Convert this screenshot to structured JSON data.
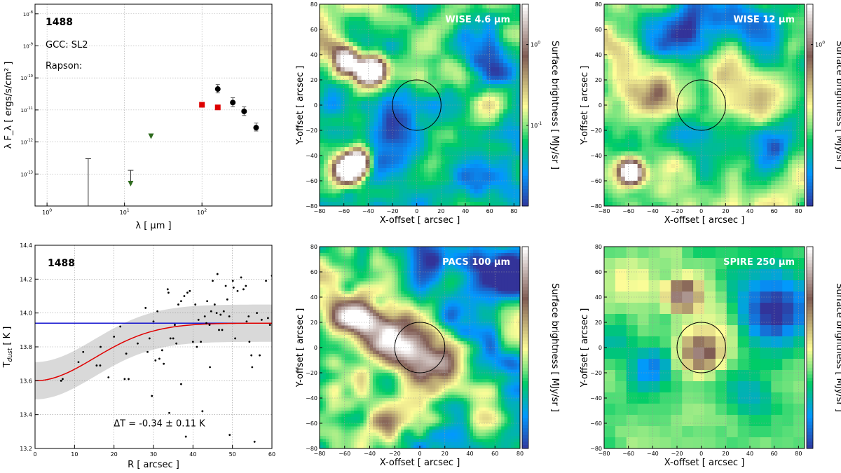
{
  "chart_data": [
    {
      "type": "scatter",
      "id": "sed",
      "source_id": "1488",
      "annotations": [
        "GCC: SL2",
        "Rapson:"
      ],
      "xlabel": "λ [ μm ]",
      "ylabel": "λ F_λ [ ergs/s/cm² ]",
      "x_scale": "log",
      "y_scale": "log",
      "xlim": [
        0.7,
        800
      ],
      "ylim": [
        1e-14,
        2e-08
      ],
      "x_ticks": [
        "10^0",
        "10^1",
        "10^2"
      ],
      "y_ticks": [
        "10^-13",
        "10^-12",
        "10^-11",
        "10^-10",
        "10^-9",
        "10^-8"
      ],
      "series": [
        {
          "name": "black circles",
          "color": "#000000",
          "marker": "circle",
          "points": [
            [
              160,
              4.5e-11
            ],
            [
              250,
              1.7e-11
            ],
            [
              350,
              9e-12
            ],
            [
              500,
              2.8e-12
            ]
          ],
          "yerr_upper": [
            6.2e-11,
            2.4e-11,
            1.25e-11,
            3.9e-12
          ],
          "yerr_lower": [
            3.4e-11,
            1.25e-11,
            6.7e-12,
            2.2e-12
          ]
        },
        {
          "name": "red squares",
          "color": "#dd0000",
          "marker": "square",
          "points": [
            [
              100,
              1.45e-11
            ],
            [
              160,
              1.2e-11
            ]
          ]
        },
        {
          "name": "green triangles (upper limits)",
          "color": "#2e6b1e",
          "marker": "triangle-down",
          "points": [
            [
              12,
              5e-14
            ],
            [
              22,
              1.5e-12
            ]
          ]
        },
        {
          "name": "bars",
          "color": "#333333",
          "marker": "errorbar",
          "bars": [
            [
              3.4,
              1e-14,
              3e-13
            ],
            [
              12,
              6e-14,
              1.3e-13
            ]
          ]
        }
      ]
    },
    {
      "type": "scatter",
      "id": "profile",
      "source_id": "1488",
      "xlabel": "R [ arcsec ]",
      "ylabel": "T_dust [ K ]",
      "xlim": [
        0,
        60
      ],
      "ylim": [
        13.2,
        14.4
      ],
      "x_ticks": [
        "0",
        "10",
        "20",
        "30",
        "40",
        "50",
        "60"
      ],
      "y_ticks": [
        "13.2",
        "13.4",
        "13.6",
        "13.8",
        "14.0",
        "14.2",
        "14.4"
      ],
      "annotation": "ΔT = -0.34 ± 0.11 K",
      "blue_line_T": 13.94,
      "fit": {
        "T_center": 13.6,
        "T_outer": 13.94,
        "sigma_arcsec": 15,
        "band_halfwidth_K": 0.11
      },
      "points": [
        [
          6.6,
          13.6
        ],
        [
          7,
          13.61
        ],
        [
          11,
          13.71
        ],
        [
          12.2,
          13.77
        ],
        [
          15.6,
          13.69
        ],
        [
          16.5,
          13.69
        ],
        [
          16.6,
          13.8
        ],
        [
          18.6,
          13.62
        ],
        [
          20,
          13.86
        ],
        [
          21.6,
          13.92
        ],
        [
          22.7,
          13.61
        ],
        [
          23.1,
          13.76
        ],
        [
          23.7,
          13.61
        ],
        [
          26,
          13.82
        ],
        [
          28,
          14.03
        ],
        [
          28.5,
          13.77
        ],
        [
          29,
          13.85
        ],
        [
          30,
          13.95
        ],
        [
          31,
          14.01
        ],
        [
          31.5,
          13.73
        ],
        [
          32.2,
          13.78
        ],
        [
          32.6,
          13.7
        ],
        [
          33.6,
          14.14
        ],
        [
          33.8,
          14.12
        ],
        [
          34,
          13.41
        ],
        [
          34.3,
          13.85
        ],
        [
          35,
          13.85
        ],
        [
          35.4,
          13.93
        ],
        [
          35.8,
          13.82
        ],
        [
          36.3,
          14.05
        ],
        [
          37,
          14.07
        ],
        [
          37.8,
          14.1
        ],
        [
          38.6,
          14.12
        ],
        [
          39.2,
          14.13
        ],
        [
          40,
          13.83
        ],
        [
          40.6,
          14.05
        ],
        [
          41,
          13.8
        ],
        [
          41.4,
          13.96
        ],
        [
          42,
          13.83
        ],
        [
          42.4,
          13.42
        ],
        [
          43,
          13.98
        ],
        [
          43.4,
          13.94
        ],
        [
          43.6,
          14.07
        ],
        [
          44.2,
          13.93
        ],
        [
          44.6,
          14.01
        ],
        [
          45,
          14.19
        ],
        [
          45.5,
          14.05
        ],
        [
          46,
          14.0
        ],
        [
          46.2,
          14.23
        ],
        [
          46.6,
          13.9
        ],
        [
          47,
          13.99
        ],
        [
          47.4,
          13.9
        ],
        [
          47.8,
          14.01
        ],
        [
          48.3,
          14.16
        ],
        [
          48.7,
          14.08
        ],
        [
          49.2,
          13.98
        ],
        [
          50.1,
          14.19
        ],
        [
          50.3,
          14.15
        ],
        [
          50.7,
          13.85
        ],
        [
          51.3,
          14.13
        ],
        [
          52.2,
          14.21
        ],
        [
          52.8,
          14.14
        ],
        [
          53.4,
          14.16
        ],
        [
          53.6,
          13.95
        ],
        [
          54.1,
          13.98
        ],
        [
          54.3,
          13.83
        ],
        [
          54.8,
          13.75
        ],
        [
          55.6,
          13.24
        ],
        [
          56.2,
          14.0
        ],
        [
          56.9,
          13.75
        ],
        [
          57.4,
          13.96
        ],
        [
          58.5,
          14.19
        ],
        [
          59,
          13.97
        ],
        [
          59.5,
          13.93
        ],
        [
          60,
          14.22
        ],
        [
          55,
          13.68
        ],
        [
          49.3,
          13.28
        ],
        [
          44.3,
          13.68
        ],
        [
          38.2,
          13.27
        ],
        [
          37,
          13.58
        ],
        [
          30.5,
          13.72
        ],
        [
          29.6,
          13.51
        ]
      ]
    },
    {
      "type": "heatmap",
      "id": "wise46",
      "title": "WISE 4.6 μm",
      "xlabel": "X-offset [ arcsec ]",
      "ylabel": "Y-offset [ arcsec ]",
      "colorbar_label": "Surface brightness [ MJy/sr ]",
      "colorbar_ticks": [
        "10^0",
        "10^-1"
      ],
      "xlim": [
        -80,
        85
      ],
      "ylim": [
        -80,
        80
      ],
      "x_ticks": [
        "−80",
        "−60",
        "−40",
        "−20",
        "0",
        "20",
        "40",
        "60",
        "80"
      ],
      "y_ticks": [
        "−80",
        "−60",
        "−40",
        "−20",
        "0",
        "20",
        "40",
        "60",
        "80"
      ],
      "circle": {
        "x": 0,
        "y": 0,
        "r_arcsec": 20
      },
      "colormap": "terrain_r",
      "grid": 24,
      "pixelated": false,
      "base": 0.34,
      "noise": 0.22,
      "blobs": [
        [
          -58,
          35,
          7,
          0.8
        ],
        [
          -35,
          27,
          7,
          0.75
        ],
        [
          -42,
          27,
          6,
          0.6
        ],
        [
          -57,
          -52,
          8,
          1.1
        ],
        [
          -48,
          -45,
          7,
          0.9
        ],
        [
          -68,
          50,
          12,
          0.25
        ],
        [
          30,
          60,
          12,
          0.2
        ],
        [
          60,
          0,
          10,
          0.15
        ]
      ],
      "holes": [
        [
          -20,
          -30,
          20,
          0.25
        ],
        [
          40,
          50,
          15,
          0.2
        ],
        [
          -70,
          0,
          12,
          0.2
        ],
        [
          50,
          -60,
          15,
          0.2
        ],
        [
          70,
          30,
          10,
          0.2
        ]
      ],
      "seed": 11
    },
    {
      "type": "heatmap",
      "id": "wise12",
      "title": "WISE 12 μm",
      "xlabel": "X-offset [ arcsec ]",
      "ylabel": "Y-offset [ arcsec ]",
      "colorbar_label": "Surface brightness [ MJy/sr ]",
      "colorbar_ticks": [
        "10^0"
      ],
      "xlim": [
        -80,
        85
      ],
      "ylim": [
        -80,
        80
      ],
      "x_ticks": [
        "−80",
        "−60",
        "−40",
        "−20",
        "0",
        "20",
        "40",
        "60",
        "80"
      ],
      "y_ticks": [
        "−80",
        "−60",
        "−40",
        "−20",
        "0",
        "20",
        "40",
        "60",
        "80"
      ],
      "circle": {
        "x": 0,
        "y": 0,
        "r_arcsec": 20
      },
      "colormap": "terrain_r",
      "grid": 24,
      "pixelated": false,
      "base": 0.42,
      "noise": 0.2,
      "blobs": [
        [
          -58,
          -53,
          7,
          0.95
        ],
        [
          -38,
          10,
          10,
          0.25
        ],
        [
          -65,
          30,
          14,
          0.2
        ],
        [
          40,
          0,
          15,
          0.15
        ],
        [
          20,
          30,
          12,
          0.2
        ]
      ],
      "holes": [
        [
          -10,
          60,
          25,
          0.35
        ],
        [
          40,
          60,
          15,
          0.25
        ],
        [
          -5,
          -20,
          18,
          0.2
        ],
        [
          60,
          -30,
          15,
          0.2
        ]
      ],
      "seed": 23
    },
    {
      "type": "heatmap",
      "id": "pacs100",
      "title": "PACS 100 μm",
      "xlabel": "X-offset [ arcsec ]",
      "ylabel": "Y-offset [ arcsec ]",
      "colorbar_label": "Surface brightness [ MJy/sr ]",
      "colorbar_ticks": [],
      "xlim": [
        -80,
        80
      ],
      "ylim": [
        -80,
        80
      ],
      "x_ticks": [
        "−80",
        "−60",
        "−40",
        "−20",
        "0",
        "20",
        "40",
        "60",
        "80"
      ],
      "y_ticks": [
        "−80",
        "−60",
        "−40",
        "−20",
        "0",
        "20",
        "40",
        "60",
        "80"
      ],
      "circle": {
        "x": 0,
        "y": 0,
        "r_arcsec": 20
      },
      "colormap": "terrain_r",
      "grid": 64,
      "pixelated": true,
      "base": 0.4,
      "noise": 0.28,
      "blobs": [
        [
          -40,
          20,
          12,
          0.45
        ],
        [
          0,
          -5,
          12,
          0.5
        ],
        [
          -20,
          10,
          14,
          0.4
        ],
        [
          -60,
          25,
          10,
          0.3
        ],
        [
          20,
          -15,
          10,
          0.3
        ],
        [
          -30,
          -65,
          10,
          0.25
        ]
      ],
      "holes": [
        [
          30,
          70,
          25,
          0.4
        ],
        [
          70,
          60,
          15,
          0.3
        ],
        [
          75,
          -10,
          10,
          0.3
        ],
        [
          50,
          20,
          15,
          0.15
        ]
      ],
      "seed": 37
    },
    {
      "type": "heatmap",
      "id": "spire250",
      "title": "SPIRE 250 μm",
      "xlabel": "X-offset [ arcsec ]",
      "ylabel": "Y-offset [ arcsec ]",
      "colorbar_label": "Surface brightness [ MJy/sr ]",
      "colorbar_ticks": [],
      "xlim": [
        -80,
        85
      ],
      "ylim": [
        -80,
        80
      ],
      "x_ticks": [
        "−80",
        "−60",
        "−40",
        "−20",
        "0",
        "20",
        "40",
        "60",
        "80"
      ],
      "y_ticks": [
        "−80",
        "−60",
        "−40",
        "−20",
        "0",
        "20",
        "40",
        "60",
        "80"
      ],
      "circle": {
        "x": 0,
        "y": 0,
        "r_arcsec": 20
      },
      "colormap": "terrain_r",
      "grid": 18,
      "pixelated": true,
      "base": 0.38,
      "noise": 0.08,
      "blobs": [
        [
          -15,
          42,
          10,
          0.5
        ],
        [
          0,
          -5,
          12,
          0.4
        ],
        [
          -55,
          55,
          15,
          0.15
        ],
        [
          20,
          20,
          10,
          0.1
        ]
      ],
      "holes": [
        [
          60,
          30,
          20,
          0.4
        ],
        [
          -40,
          -15,
          12,
          0.25
        ],
        [
          40,
          -35,
          15,
          0.15
        ],
        [
          -70,
          10,
          10,
          0.1
        ]
      ],
      "seed": 51
    }
  ]
}
